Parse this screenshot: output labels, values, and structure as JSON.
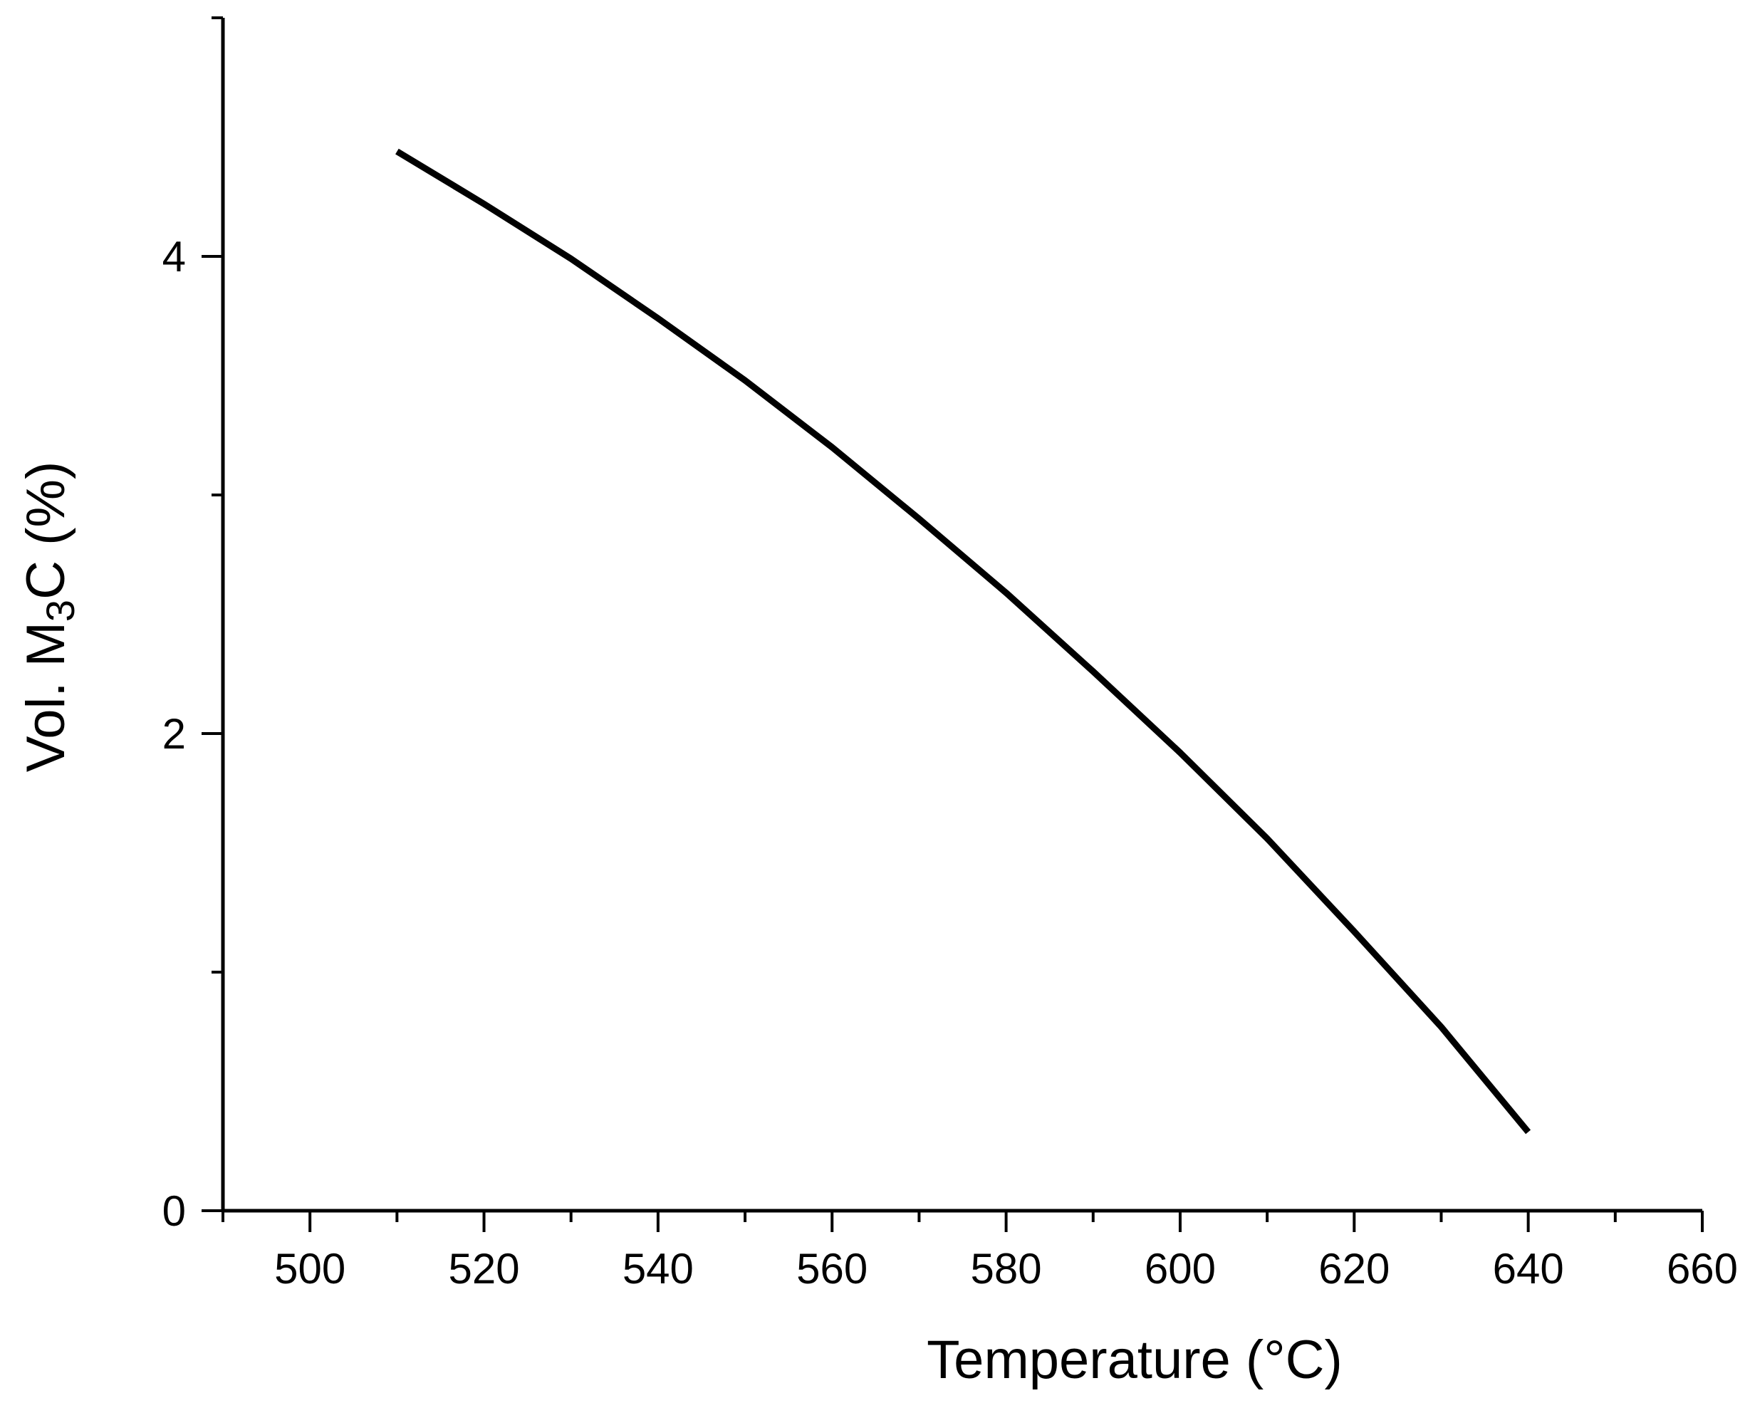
{
  "chart_data": {
    "type": "line",
    "xlabel": "Temperature (°C)",
    "ylabel": {
      "prefix": "Vol. M",
      "subscript": "3",
      "suffix": "C (%)"
    },
    "xlim": [
      490,
      660
    ],
    "ylim": [
      0,
      5.0
    ],
    "x_ticks": [
      500,
      520,
      540,
      560,
      580,
      600,
      620,
      640,
      660
    ],
    "x_tick_labels": [
      "500",
      "520",
      "540",
      "560",
      "580",
      "600",
      "620",
      "640",
      "660"
    ],
    "x_minor_ticks": [
      490,
      510,
      530,
      550,
      570,
      590,
      610,
      630,
      650
    ],
    "y_ticks": [
      0,
      2,
      4
    ],
    "y_tick_labels": [
      "0",
      "2",
      "4"
    ],
    "y_minor_ticks": [
      1,
      3,
      5
    ],
    "grid": false,
    "legend": "none",
    "series": [
      {
        "color": "#000000",
        "x": [
          510,
          520,
          530,
          540,
          550,
          560,
          570,
          580,
          590,
          600,
          610,
          620,
          630,
          640
        ],
        "y": [
          4.44,
          4.22,
          3.99,
          3.74,
          3.48,
          3.2,
          2.9,
          2.59,
          2.26,
          1.92,
          1.56,
          1.17,
          0.77,
          0.33
        ]
      }
    ]
  }
}
